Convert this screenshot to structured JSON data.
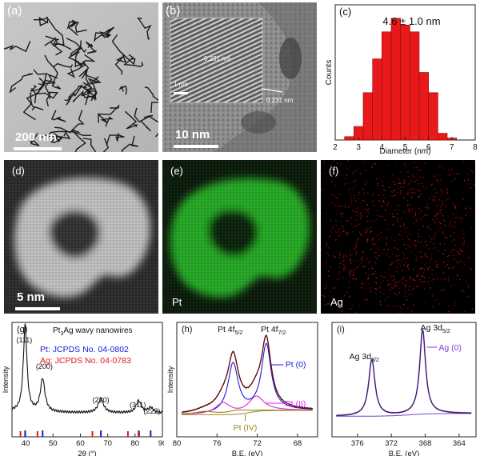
{
  "panels": {
    "a": {
      "label": "(a)",
      "scalebar": "200 nm"
    },
    "b": {
      "label": "(b)",
      "scalebar": "10 nm",
      "inset_scalebar": "1 nm",
      "d1": "0.231 nm",
      "d2": "0.231 nm"
    },
    "c": {
      "label": "(c)"
    },
    "d": {
      "label": "(d)",
      "scalebar": "5 nm"
    },
    "e": {
      "label": "(e)",
      "element": "Pt"
    },
    "f": {
      "label": "(f)",
      "element": "Ag"
    },
    "g": {
      "label": "(g)",
      "title": "Pt",
      "title_sub": "3",
      "title_rest": "Ag wavy nanowires",
      "pt_ref": "Pt:  JCPDS No. 04-0802",
      "ag_ref": "Ag: JCPDS No. 04-0783",
      "peaks": [
        "(111)",
        "(200)",
        "(220)",
        "(311)",
        "(222)"
      ]
    },
    "h": {
      "label": "(h)",
      "pt0": "Pt (0)",
      "ptii": "Pt (II)",
      "ptiv": "Pt (IV)"
    },
    "i": {
      "label": "(i)",
      "ag0": "Ag (0)"
    }
  },
  "colors": {
    "bar": "#e8191a",
    "pt_green": "#1db41d",
    "ag_red": "#d01010",
    "pt_blue": "#1a1ad8",
    "ag_ref_red": "#e01818",
    "fit_magenta": "#e020e0",
    "fit_olive": "#9a8a20",
    "purple": "#7a3fd0"
  },
  "chart_data": [
    {
      "type": "bar",
      "annotation": "4.6 ± 1.0 nm",
      "xlabel": "Diameter (nm)",
      "ylabel": "Counts",
      "xlim": [
        2,
        8
      ],
      "xticks": [
        "2",
        "3",
        "4",
        "5",
        "6",
        "7",
        "8"
      ],
      "bin_width": 0.4,
      "x": [
        2.6,
        3.0,
        3.4,
        3.8,
        4.2,
        4.6,
        5.0,
        5.4,
        5.8,
        6.2,
        6.6,
        7.0
      ],
      "values": [
        0.5,
        2,
        7,
        12,
        16,
        18,
        17,
        16,
        10,
        7,
        1,
        0.3
      ]
    },
    {
      "type": "line",
      "xlabel": "2θ (°)",
      "ylabel": "Intensity",
      "xlim": [
        35,
        90
      ],
      "xticks": [
        "40",
        "50",
        "60",
        "70",
        "80",
        "90"
      ],
      "peaks_2theta": [
        39.8,
        46.2,
        67.5,
        81.3,
        85.7
      ],
      "pt_ref_2theta": [
        39.8,
        46.2,
        67.5,
        81.3,
        85.7
      ],
      "ag_ref_2theta": [
        38.1,
        44.3,
        64.4,
        77.4,
        81.5
      ]
    },
    {
      "type": "line",
      "xlabel": "B.E. (eV)",
      "ylabel": "Intensity",
      "xlim": [
        80,
        66
      ],
      "xticks": [
        "80",
        "76",
        "72",
        "68"
      ],
      "peaks": [
        {
          "label": "Pt 4f",
          "sub": "5/2",
          "be": 74.4
        },
        {
          "label": "Pt 4f",
          "sub": "7/2",
          "be": 71.1
        }
      ]
    },
    {
      "type": "line",
      "xlabel": "B.E. (eV)",
      "ylabel": "",
      "xlim": [
        379,
        362
      ],
      "xticks": [
        "376",
        "372",
        "368",
        "364"
      ],
      "peaks": [
        {
          "label": "Ag 3d",
          "sub": "3/2",
          "be": 374.3
        },
        {
          "label": "Ag 3d",
          "sub": "5/2",
          "be": 368.3
        }
      ]
    }
  ]
}
